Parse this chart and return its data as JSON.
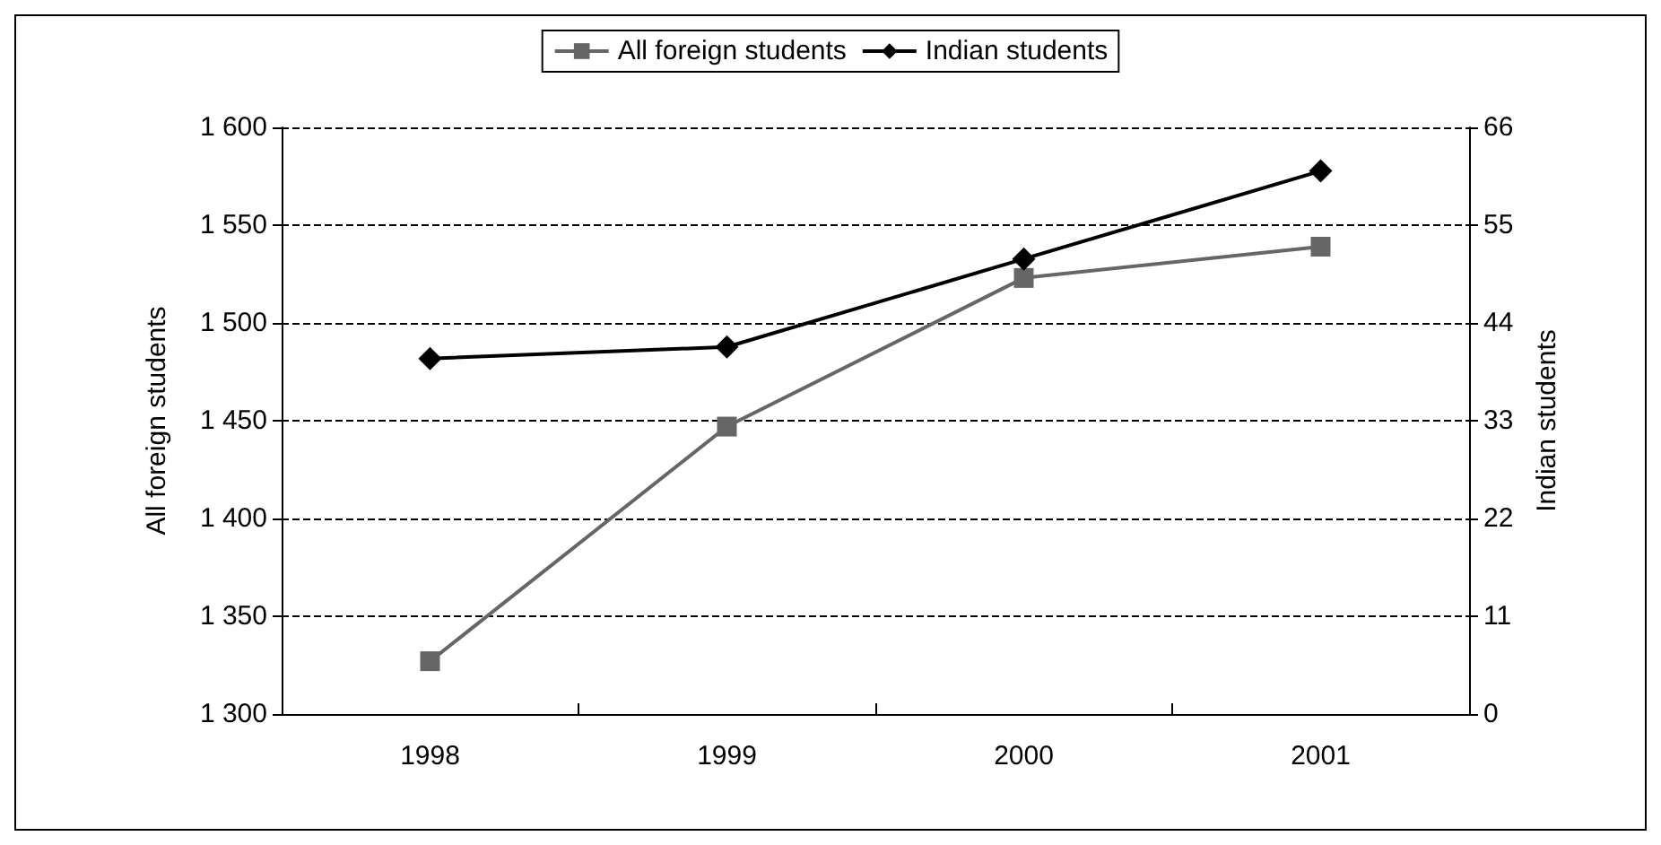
{
  "chart_data": {
    "type": "line",
    "categories": [
      "1998",
      "1999",
      "2000",
      "2001"
    ],
    "ylabel": "All foreign students",
    "y2label": "Indian students",
    "series": [
      {
        "name": "All foreign students",
        "color": "#666666",
        "marker": "square",
        "values": [
          1327,
          1447,
          1523,
          1539
        ]
      },
      {
        "name": "Indian students",
        "color": "#000000",
        "marker": "diamond",
        "axis": "y2",
        "values": [
          40,
          41.3,
          51.2,
          61.1
        ]
      }
    ],
    "ylim": [
      1300,
      1600
    ],
    "yticks": [
      {
        "value": 1300,
        "label": "1 300"
      },
      {
        "value": 1350,
        "label": "1 350"
      },
      {
        "value": 1400,
        "label": "1 400"
      },
      {
        "value": 1450,
        "label": "1 450"
      },
      {
        "value": 1500,
        "label": "1 500"
      },
      {
        "value": 1550,
        "label": "1 550"
      },
      {
        "value": 1600,
        "label": "1 600"
      }
    ],
    "y2lim": [
      0,
      66
    ],
    "y2ticks": [
      0,
      11,
      22,
      33,
      44,
      55,
      66
    ],
    "grid": "y",
    "legend": "top",
    "line_style": "solid"
  }
}
